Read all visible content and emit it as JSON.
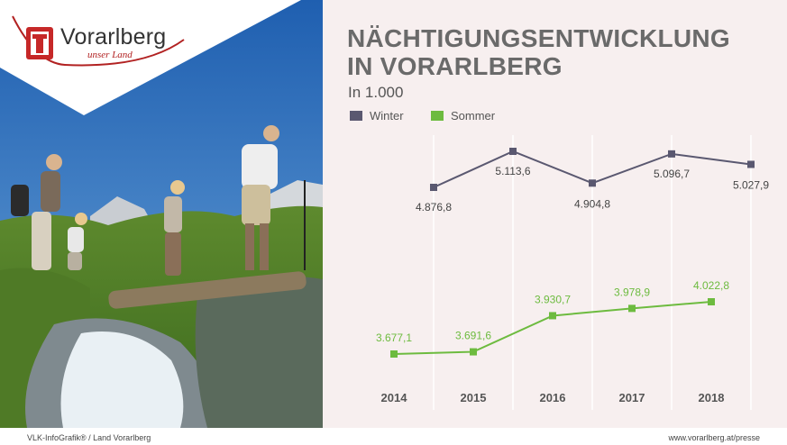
{
  "brand": {
    "name": "Vorarlberg",
    "tagline": "unser Land"
  },
  "header": {
    "title_line1": "NÄCHTIGUNGSENTWICKLUNG",
    "title_line2": "IN VORARLBERG",
    "subtitle": "In 1.000"
  },
  "footer": {
    "left": "VLK-InfoGrafik®   /   Land Vorarlberg",
    "right": "www.vorarlberg.at/presse"
  },
  "colors": {
    "winter": "#5a5870",
    "sommer": "#6dbb3f",
    "panel": "#f7efef",
    "title": "#6a6a6a"
  },
  "chart_data": {
    "type": "line",
    "title": "NÄCHTIGUNGSENTWICKLUNG IN VORARLBERG",
    "subtitle": "In 1.000",
    "categories": [
      "2014",
      "2015",
      "2016",
      "2017",
      "2018"
    ],
    "legend_position": "top-left",
    "grid": "vertical",
    "series": [
      {
        "name": "Winter",
        "x": [
          "2014.5",
          "2015.5",
          "2016.5",
          "2017.5",
          "2018.5"
        ],
        "values": [
          4876.8,
          5113.6,
          4904.8,
          5096.7,
          5027.9
        ],
        "labels": [
          "4.876,8",
          "5.113,6",
          "4.904,8",
          "5.096,7",
          "5.027,9"
        ]
      },
      {
        "name": "Sommer",
        "x": [
          "2014",
          "2015",
          "2016",
          "2017",
          "2018"
        ],
        "values": [
          3677.1,
          3691.6,
          3930.7,
          3978.9,
          4022.8
        ],
        "labels": [
          "3.677,1",
          "3.691,6",
          "3.930,7",
          "3.978,9",
          "4.022,8"
        ]
      }
    ]
  }
}
